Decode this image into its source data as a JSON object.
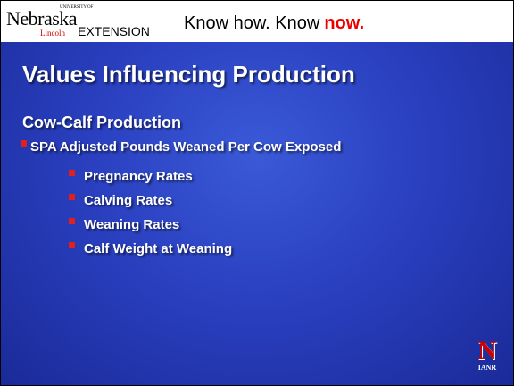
{
  "header": {
    "logo": {
      "small": "UNIVERSITY OF",
      "name": "Nebraska",
      "campus": "Lincoln",
      "unit": "EXTENSION"
    },
    "tagline": {
      "text": "Know how. Know",
      "emphasis": "now."
    }
  },
  "slide": {
    "title": "Values Influencing Production",
    "heading": "Cow-Calf Production",
    "bullets": [
      {
        "text": "SPA Adjusted Pounds Weaned Per Cow Exposed",
        "children": [
          "Pregnancy Rates",
          "Calving Rates",
          "Weaning Rates",
          "Calf Weight at Weaning"
        ]
      }
    ]
  },
  "footer": {
    "logo": {
      "letter": "N",
      "text": "IANR"
    }
  }
}
